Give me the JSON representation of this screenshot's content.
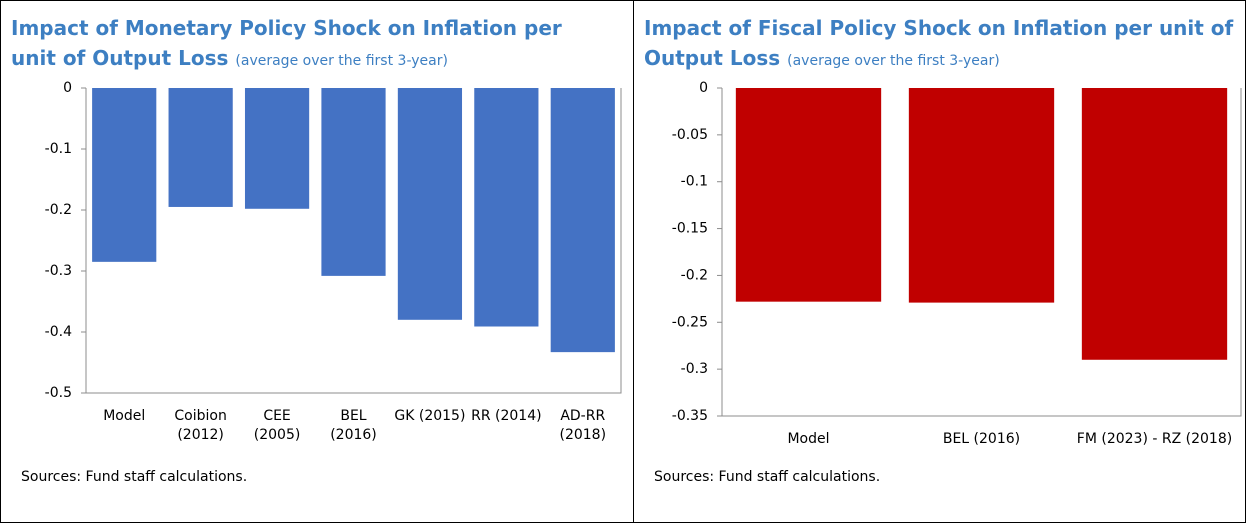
{
  "chart_data": [
    {
      "type": "bar",
      "title": "Impact of Monetary Policy Shock on Inflation per unit of Output Loss",
      "subtitle": "(average over the first 3-year)",
      "categories": [
        "Model",
        "Coibion (2012)",
        "CEE (2005)",
        "BEL (2016)",
        "GK (2015)",
        "RR (2014)",
        "AD-RR (2018)"
      ],
      "values": [
        -0.285,
        -0.195,
        -0.198,
        -0.308,
        -0.38,
        -0.391,
        -0.433
      ],
      "color": "#4472c4",
      "ylim": [
        -0.5,
        0
      ],
      "yticks": [
        0,
        -0.1,
        -0.2,
        -0.3,
        -0.4,
        -0.5
      ],
      "grid": false,
      "note": "Sources: Fund staff calculations."
    },
    {
      "type": "bar",
      "title": "Impact of Fiscal Policy Shock on Inflation per unit of Output Loss",
      "subtitle": "(average over the first 3-year)",
      "categories": [
        "Model",
        "BEL (2016)",
        "FM (2023) - RZ (2018)"
      ],
      "values": [
        -0.228,
        -0.229,
        -0.29
      ],
      "color": "#c00000",
      "ylim": [
        -0.35,
        0
      ],
      "yticks": [
        0,
        -0.05,
        -0.1,
        -0.15,
        -0.2,
        -0.25,
        -0.3,
        -0.35
      ],
      "grid": false,
      "note": "Sources: Fund staff calculations."
    }
  ]
}
